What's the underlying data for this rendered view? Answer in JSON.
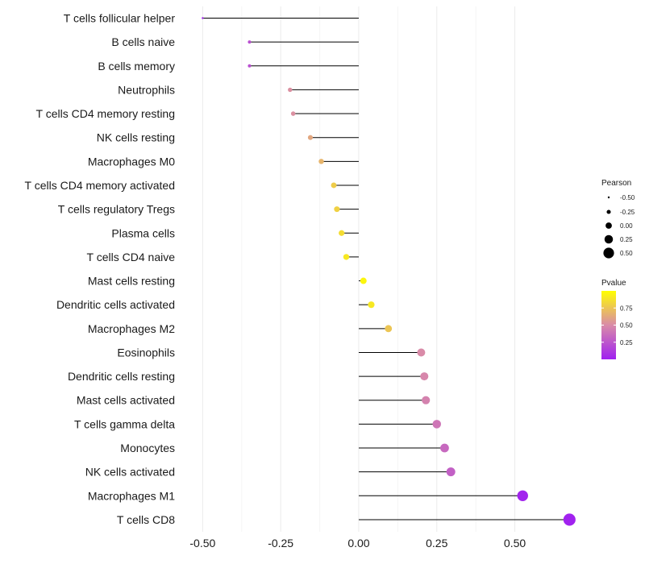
{
  "chart_data": {
    "type": "lollipop",
    "title": "",
    "xlabel": "",
    "ylabel": "",
    "xlim": [
      -0.55,
      0.7
    ],
    "x_ticks": [
      -0.5,
      -0.25,
      0.0,
      0.25,
      0.5
    ],
    "x_tick_labels": [
      "-0.50",
      "-0.25",
      "0.00",
      "0.25",
      "0.50"
    ],
    "grid": "vertical-major-and-minor",
    "points": [
      {
        "category": "T cells follicular helper",
        "value": -0.5,
        "pvalue": 0.02
      },
      {
        "category": "B cells naive",
        "value": -0.35,
        "pvalue": 0.22
      },
      {
        "category": "B cells memory",
        "value": -0.35,
        "pvalue": 0.22
      },
      {
        "category": "Neutrophils",
        "value": -0.22,
        "pvalue": 0.52
      },
      {
        "category": "T cells CD4 memory resting",
        "value": -0.21,
        "pvalue": 0.52
      },
      {
        "category": "NK cells resting",
        "value": -0.155,
        "pvalue": 0.62
      },
      {
        "category": "Macrophages M0",
        "value": -0.12,
        "pvalue": 0.68
      },
      {
        "category": "T cells CD4 memory activated",
        "value": -0.08,
        "pvalue": 0.78
      },
      {
        "category": "T cells regulatory  Tregs ",
        "value": -0.07,
        "pvalue": 0.8
      },
      {
        "category": "Plasma cells",
        "value": -0.055,
        "pvalue": 0.85
      },
      {
        "category": "T cells CD4 naive",
        "value": -0.04,
        "pvalue": 0.9
      },
      {
        "category": "Mast cells resting",
        "value": 0.015,
        "pvalue": 0.96
      },
      {
        "category": "Dendritic cells activated",
        "value": 0.04,
        "pvalue": 0.9
      },
      {
        "category": "Macrophages M2",
        "value": 0.095,
        "pvalue": 0.75
      },
      {
        "category": "Eosinophils",
        "value": 0.2,
        "pvalue": 0.5
      },
      {
        "category": "Dendritic cells resting",
        "value": 0.21,
        "pvalue": 0.48
      },
      {
        "category": "Mast cells activated",
        "value": 0.215,
        "pvalue": 0.46
      },
      {
        "category": "T cells gamma delta",
        "value": 0.25,
        "pvalue": 0.4
      },
      {
        "category": "Monocytes",
        "value": 0.275,
        "pvalue": 0.34
      },
      {
        "category": "NK cells activated",
        "value": 0.295,
        "pvalue": 0.3
      },
      {
        "category": "Macrophages M1",
        "value": 0.525,
        "pvalue": 0.02
      },
      {
        "category": "T cells CD8",
        "value": 0.675,
        "pvalue": 0.01
      }
    ],
    "size_legend": {
      "title": "Pearson",
      "values": [
        -0.5,
        -0.25,
        0.0,
        0.25,
        0.5
      ],
      "labels": [
        "-0.50",
        "-0.25",
        "0.00",
        "0.25",
        "0.50"
      ]
    },
    "color_legend": {
      "title": "Pvalue",
      "ticks": [
        0.25,
        0.5,
        0.75
      ],
      "tick_labels": [
        "0.25",
        "0.50",
        "0.75"
      ],
      "range": [
        0.0,
        1.0
      ],
      "low_color": "#a020f0",
      "mid_color": "#d98ba8",
      "high_color": "#ffff00"
    },
    "colors": {
      "stem": "#000000",
      "grid_major": "#ebebeb",
      "grid_minor": "#f5f5f5",
      "legend_dot": "#000000"
    }
  }
}
